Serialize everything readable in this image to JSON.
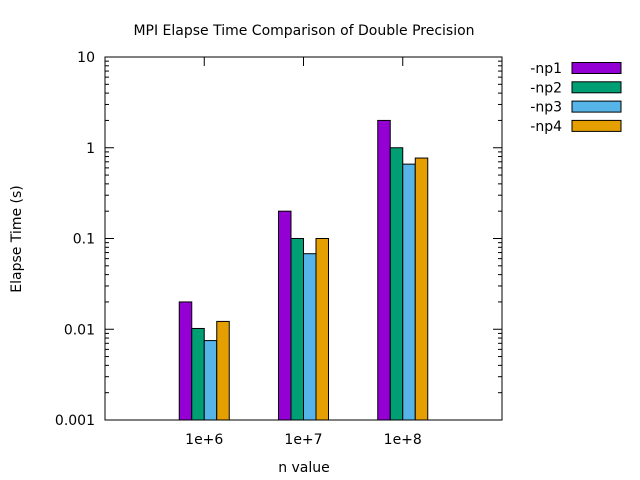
{
  "chart_data": {
    "type": "bar",
    "title": "MPI Elapse Time Comparison of Double Precision",
    "xlabel": "n value",
    "ylabel": "Elapse Time (s)",
    "yscale": "log",
    "ylim": [
      0.001,
      10
    ],
    "yticks": [
      "0.001",
      "0.01",
      "0.1",
      "1",
      "10"
    ],
    "categories": [
      "1e+6",
      "1e+7",
      "1e+8"
    ],
    "series": [
      {
        "name": "-np1",
        "color": "#9400d3",
        "values": [
          0.02,
          0.2,
          2.0
        ]
      },
      {
        "name": "-np2",
        "color": "#009e73",
        "values": [
          0.0102,
          0.1,
          1.0
        ]
      },
      {
        "name": "-np3",
        "color": "#56b4e9",
        "values": [
          0.0075,
          0.068,
          0.66
        ]
      },
      {
        "name": "-np4",
        "color": "#e69f00",
        "values": [
          0.0122,
          0.1,
          0.77
        ]
      }
    ],
    "grid": false,
    "legend": "top-right"
  }
}
